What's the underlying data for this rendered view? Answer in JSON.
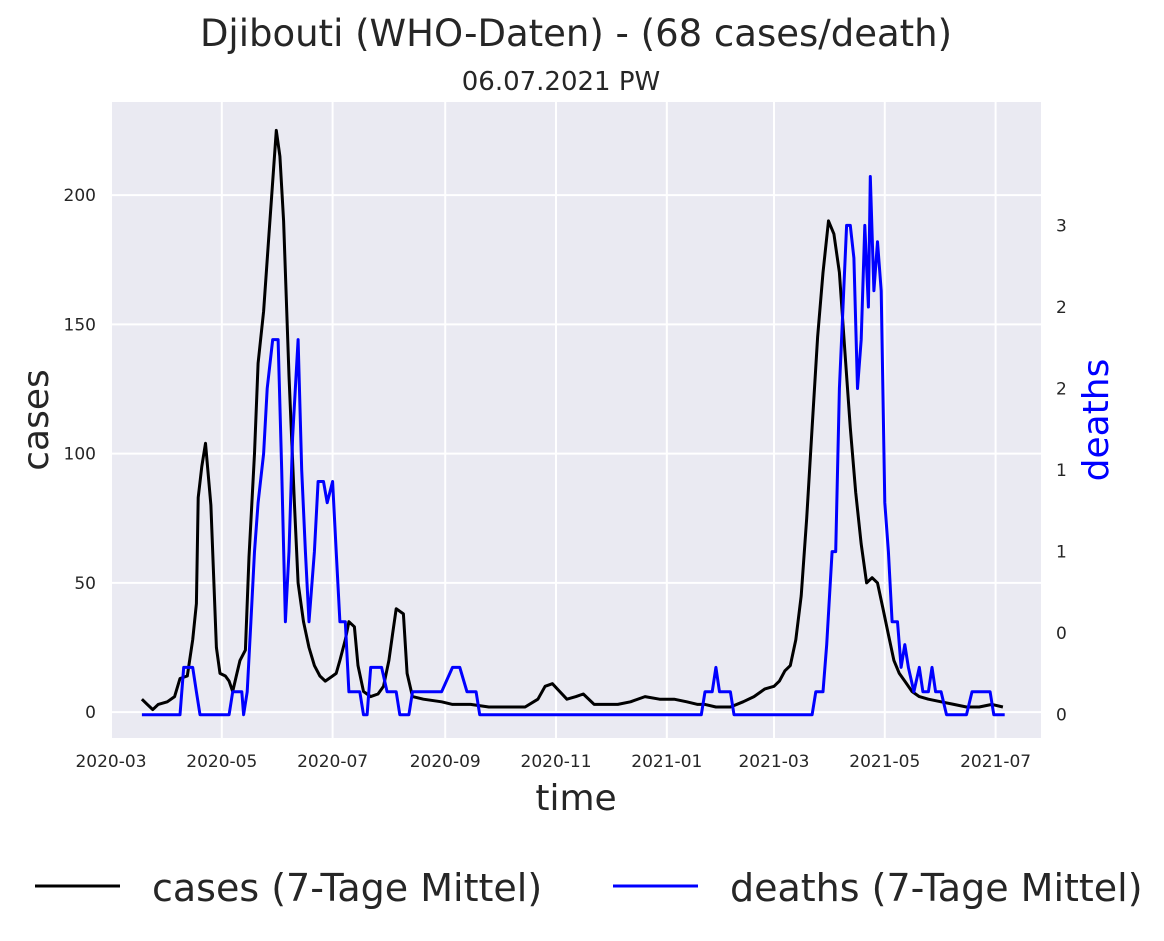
{
  "chart_data": {
    "type": "line",
    "title": "Djibouti (WHO-Daten) - (68 cases/death)",
    "subtitle": "06.07.2021 PW",
    "xlabel": "time",
    "ylabel": "cases",
    "y2label": "deaths",
    "x_ticks": [
      "2020-03",
      "2020-05",
      "2020-07",
      "2020-09",
      "2020-11",
      "2021-01",
      "2021-03",
      "2021-05",
      "2021-07"
    ],
    "y_ticks": [
      "0",
      "50",
      "100",
      "150",
      "200"
    ],
    "y2_ticks": [
      "0",
      "0",
      "1",
      "1",
      "2",
      "2",
      "3"
    ],
    "xlim": [
      "2020-03-01",
      "2021-07-26"
    ],
    "ylim": [
      -10,
      236
    ],
    "y2lim": [
      -0.143,
      3.757
    ],
    "grid": true,
    "legend_position": "bottom",
    "colors": {
      "cases": "#000000",
      "deaths": "#0000ff",
      "background": "#eaeaf2",
      "grid": "#ffffff"
    },
    "series": [
      {
        "name": "cases (7-Tage Mittel)",
        "axis": "left",
        "points": [
          [
            "2020-03-18",
            5
          ],
          [
            "2020-03-21",
            3
          ],
          [
            "2020-03-24",
            1
          ],
          [
            "2020-03-27",
            3
          ],
          [
            "2020-04-01",
            4
          ],
          [
            "2020-04-05",
            6
          ],
          [
            "2020-04-08",
            13
          ],
          [
            "2020-04-12",
            14
          ],
          [
            "2020-04-15",
            28
          ],
          [
            "2020-04-17",
            42
          ],
          [
            "2020-04-18",
            83
          ],
          [
            "2020-04-20",
            95
          ],
          [
            "2020-04-22",
            104
          ],
          [
            "2020-04-25",
            80
          ],
          [
            "2020-04-28",
            25
          ],
          [
            "2020-04-30",
            15
          ],
          [
            "2020-05-03",
            14
          ],
          [
            "2020-05-05",
            12
          ],
          [
            "2020-05-07",
            8
          ],
          [
            "2020-05-09",
            14
          ],
          [
            "2020-05-11",
            20
          ],
          [
            "2020-05-14",
            24
          ],
          [
            "2020-05-16",
            60
          ],
          [
            "2020-05-19",
            100
          ],
          [
            "2020-05-21",
            135
          ],
          [
            "2020-05-24",
            155
          ],
          [
            "2020-05-27",
            185
          ],
          [
            "2020-05-31",
            225
          ],
          [
            "2020-06-02",
            215
          ],
          [
            "2020-06-04",
            190
          ],
          [
            "2020-06-07",
            130
          ],
          [
            "2020-06-10",
            80
          ],
          [
            "2020-06-12",
            50
          ],
          [
            "2020-06-15",
            35
          ],
          [
            "2020-06-18",
            25
          ],
          [
            "2020-06-21",
            18
          ],
          [
            "2020-06-24",
            14
          ],
          [
            "2020-06-27",
            12
          ],
          [
            "2020-07-01",
            14
          ],
          [
            "2020-07-03",
            15
          ],
          [
            "2020-07-05",
            20
          ],
          [
            "2020-07-08",
            28
          ],
          [
            "2020-07-10",
            35
          ],
          [
            "2020-07-13",
            33
          ],
          [
            "2020-07-15",
            18
          ],
          [
            "2020-07-18",
            8
          ],
          [
            "2020-07-22",
            6
          ],
          [
            "2020-07-26",
            7
          ],
          [
            "2020-07-29",
            10
          ],
          [
            "2020-08-01",
            20
          ],
          [
            "2020-08-03",
            30
          ],
          [
            "2020-08-05",
            40
          ],
          [
            "2020-08-09",
            38
          ],
          [
            "2020-08-11",
            15
          ],
          [
            "2020-08-14",
            6
          ],
          [
            "2020-08-20",
            5
          ],
          [
            "2020-08-30",
            4
          ],
          [
            "2020-09-05",
            3
          ],
          [
            "2020-09-15",
            3
          ],
          [
            "2020-09-25",
            2
          ],
          [
            "2020-10-05",
            2
          ],
          [
            "2020-10-15",
            2
          ],
          [
            "2020-10-22",
            5
          ],
          [
            "2020-10-26",
            10
          ],
          [
            "2020-10-30",
            11
          ],
          [
            "2020-11-03",
            8
          ],
          [
            "2020-11-07",
            5
          ],
          [
            "2020-11-12",
            6
          ],
          [
            "2020-11-16",
            7
          ],
          [
            "2020-11-22",
            3
          ],
          [
            "2020-12-05",
            3
          ],
          [
            "2020-12-12",
            4
          ],
          [
            "2020-12-20",
            6
          ],
          [
            "2020-12-28",
            5
          ],
          [
            "2021-01-05",
            5
          ],
          [
            "2021-01-12",
            4
          ],
          [
            "2021-01-18",
            3
          ],
          [
            "2021-01-22",
            3
          ],
          [
            "2021-01-28",
            2
          ],
          [
            "2021-02-05",
            2
          ],
          [
            "2021-02-12",
            4
          ],
          [
            "2021-02-18",
            6
          ],
          [
            "2021-02-24",
            9
          ],
          [
            "2021-03-01",
            10
          ],
          [
            "2021-03-04",
            12
          ],
          [
            "2021-03-07",
            16
          ],
          [
            "2021-03-10",
            18
          ],
          [
            "2021-03-13",
            28
          ],
          [
            "2021-03-16",
            45
          ],
          [
            "2021-03-19",
            75
          ],
          [
            "2021-03-22",
            110
          ],
          [
            "2021-03-25",
            145
          ],
          [
            "2021-03-28",
            170
          ],
          [
            "2021-03-31",
            190
          ],
          [
            "2021-04-03",
            185
          ],
          [
            "2021-04-06",
            170
          ],
          [
            "2021-04-09",
            140
          ],
          [
            "2021-04-12",
            110
          ],
          [
            "2021-04-15",
            85
          ],
          [
            "2021-04-18",
            65
          ],
          [
            "2021-04-21",
            50
          ],
          [
            "2021-04-24",
            52
          ],
          [
            "2021-04-27",
            50
          ],
          [
            "2021-04-30",
            40
          ],
          [
            "2021-05-03",
            30
          ],
          [
            "2021-05-06",
            20
          ],
          [
            "2021-05-09",
            15
          ],
          [
            "2021-05-12",
            12
          ],
          [
            "2021-05-16",
            8
          ],
          [
            "2021-05-20",
            6
          ],
          [
            "2021-05-25",
            5
          ],
          [
            "2021-06-01",
            4
          ],
          [
            "2021-06-08",
            3
          ],
          [
            "2021-06-15",
            2
          ],
          [
            "2021-06-22",
            2
          ],
          [
            "2021-06-29",
            3
          ],
          [
            "2021-07-05",
            2
          ]
        ]
      },
      {
        "name": "deaths (7-Tage Mittel)",
        "axis": "right",
        "points": [
          [
            "2020-03-18",
            0
          ],
          [
            "2020-04-08",
            0
          ],
          [
            "2020-04-10",
            0.29
          ],
          [
            "2020-04-15",
            0.29
          ],
          [
            "2020-04-17",
            0.14
          ],
          [
            "2020-04-19",
            0
          ],
          [
            "2020-05-05",
            0
          ],
          [
            "2020-05-07",
            0.14
          ],
          [
            "2020-05-12",
            0.14
          ],
          [
            "2020-05-13",
            0
          ],
          [
            "2020-05-15",
            0.14
          ],
          [
            "2020-05-17",
            0.57
          ],
          [
            "2020-05-19",
            1.0
          ],
          [
            "2020-05-21",
            1.3
          ],
          [
            "2020-05-24",
            1.6
          ],
          [
            "2020-05-26",
            2.0
          ],
          [
            "2020-05-29",
            2.3
          ],
          [
            "2020-06-01",
            2.3
          ],
          [
            "2020-06-03",
            1.5
          ],
          [
            "2020-06-05",
            0.57
          ],
          [
            "2020-06-07",
            1.0
          ],
          [
            "2020-06-09",
            1.7
          ],
          [
            "2020-06-12",
            2.3
          ],
          [
            "2020-06-14",
            1.5
          ],
          [
            "2020-06-16",
            1.0
          ],
          [
            "2020-06-18",
            0.57
          ],
          [
            "2020-06-21",
            1.0
          ],
          [
            "2020-06-23",
            1.43
          ],
          [
            "2020-06-26",
            1.43
          ],
          [
            "2020-06-28",
            1.3
          ],
          [
            "2020-07-01",
            1.43
          ],
          [
            "2020-07-03",
            1.0
          ],
          [
            "2020-07-05",
            0.57
          ],
          [
            "2020-07-08",
            0.57
          ],
          [
            "2020-07-10",
            0.14
          ],
          [
            "2020-07-16",
            0.14
          ],
          [
            "2020-07-18",
            0
          ],
          [
            "2020-07-20",
            0
          ],
          [
            "2020-07-22",
            0.29
          ],
          [
            "2020-07-28",
            0.29
          ],
          [
            "2020-07-31",
            0.14
          ],
          [
            "2020-08-05",
            0.14
          ],
          [
            "2020-08-07",
            0
          ],
          [
            "2020-08-12",
            0
          ],
          [
            "2020-08-14",
            0.14
          ],
          [
            "2020-08-30",
            0.14
          ],
          [
            "2020-09-05",
            0.29
          ],
          [
            "2020-09-09",
            0.29
          ],
          [
            "2020-09-13",
            0.14
          ],
          [
            "2020-09-18",
            0.14
          ],
          [
            "2020-09-20",
            0
          ],
          [
            "2021-01-20",
            0
          ],
          [
            "2021-01-22",
            0.14
          ],
          [
            "2021-01-26",
            0.14
          ],
          [
            "2021-01-28",
            0.29
          ],
          [
            "2021-01-30",
            0.14
          ],
          [
            "2021-02-05",
            0.14
          ],
          [
            "2021-02-07",
            0
          ],
          [
            "2021-03-22",
            0
          ],
          [
            "2021-03-24",
            0.14
          ],
          [
            "2021-03-28",
            0.14
          ],
          [
            "2021-03-30",
            0.43
          ],
          [
            "2021-04-02",
            1.0
          ],
          [
            "2021-04-04",
            1.0
          ],
          [
            "2021-04-06",
            2.0
          ],
          [
            "2021-04-08",
            2.5
          ],
          [
            "2021-04-10",
            3.0
          ],
          [
            "2021-04-12",
            3.0
          ],
          [
            "2021-04-14",
            2.8
          ],
          [
            "2021-04-16",
            2.0
          ],
          [
            "2021-04-18",
            2.3
          ],
          [
            "2021-04-20",
            3.0
          ],
          [
            "2021-04-22",
            2.5
          ],
          [
            "2021-04-23",
            3.3
          ],
          [
            "2021-04-25",
            2.6
          ],
          [
            "2021-04-27",
            2.9
          ],
          [
            "2021-04-29",
            2.6
          ],
          [
            "2021-05-01",
            1.3
          ],
          [
            "2021-05-03",
            1.0
          ],
          [
            "2021-05-05",
            0.57
          ],
          [
            "2021-05-08",
            0.57
          ],
          [
            "2021-05-10",
            0.29
          ],
          [
            "2021-05-12",
            0.43
          ],
          [
            "2021-05-14",
            0.29
          ],
          [
            "2021-05-17",
            0.14
          ],
          [
            "2021-05-20",
            0.29
          ],
          [
            "2021-05-22",
            0.14
          ],
          [
            "2021-05-25",
            0.14
          ],
          [
            "2021-05-27",
            0.29
          ],
          [
            "2021-05-29",
            0.14
          ],
          [
            "2021-06-01",
            0.14
          ],
          [
            "2021-06-04",
            0
          ],
          [
            "2021-06-15",
            0
          ],
          [
            "2021-06-18",
            0.14
          ],
          [
            "2021-06-28",
            0.14
          ],
          [
            "2021-06-30",
            0
          ],
          [
            "2021-07-06",
            0
          ]
        ]
      }
    ]
  }
}
